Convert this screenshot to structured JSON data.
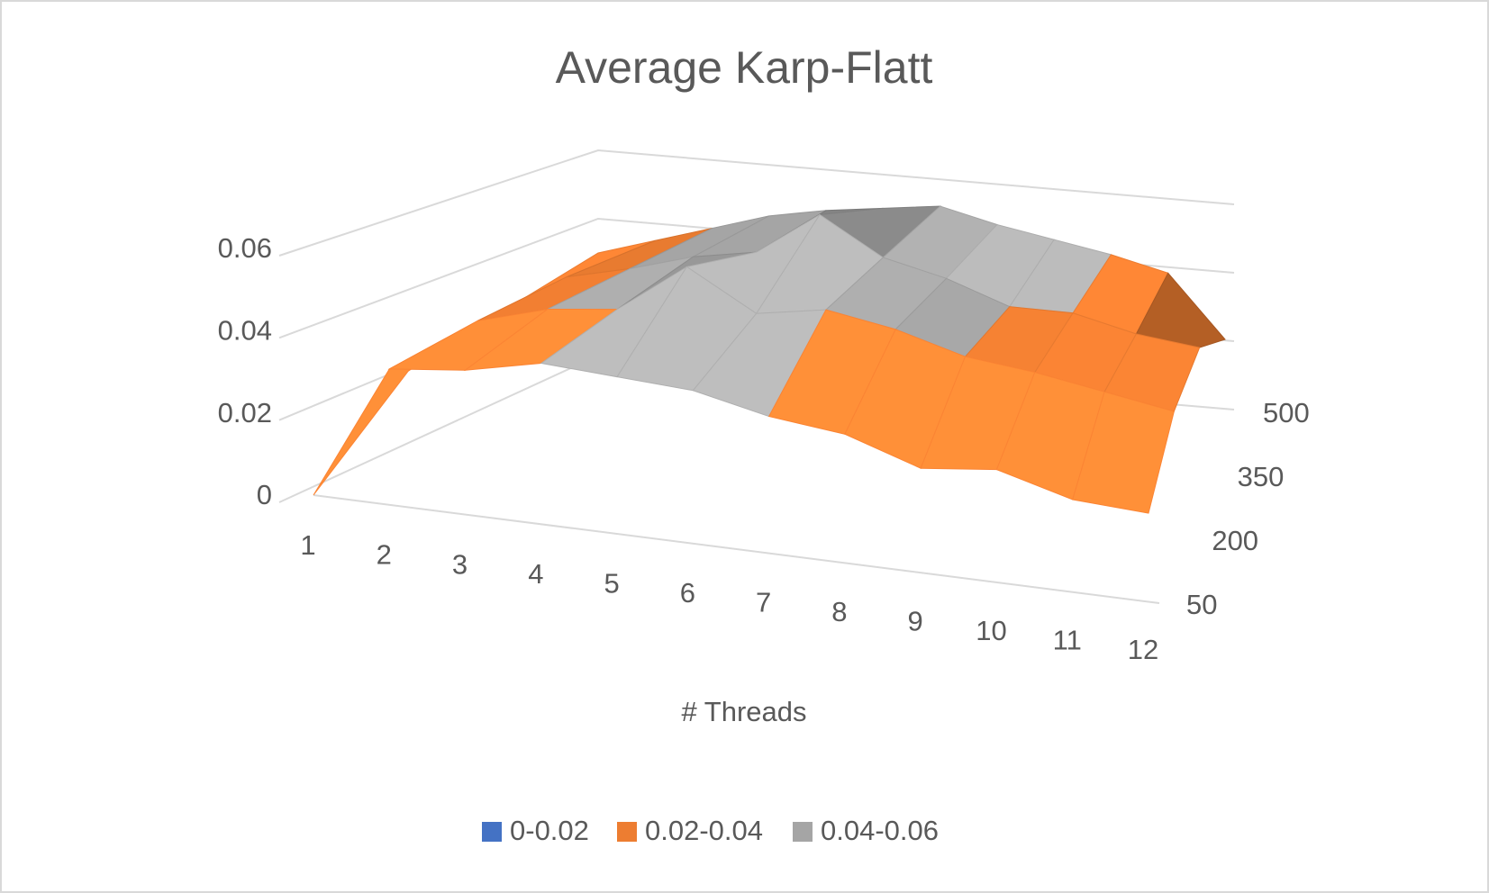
{
  "chart_data": {
    "type": "surface",
    "title": "Average Karp-Flatt",
    "x_label": "# Threads",
    "categories": [
      "1",
      "2",
      "3",
      "4",
      "5",
      "6",
      "7",
      "8",
      "9",
      "10",
      "11",
      "12"
    ],
    "depth_categories": [
      "50",
      "200",
      "350",
      "500"
    ],
    "z": [
      [
        0,
        0.033,
        0.035,
        0.039,
        0.038,
        0.037,
        0.033,
        0.031,
        0.025,
        0.027,
        0.022,
        0.021
      ],
      [
        0.02,
        0.035,
        0.04,
        0.042,
        0.055,
        0.045,
        0.048,
        0.045,
        0.04,
        0.038,
        0.035,
        0.032
      ],
      [
        0.025,
        0.036,
        0.04,
        0.045,
        0.048,
        0.06,
        0.05,
        0.046,
        0.04,
        0.04,
        0.036,
        0.034
      ],
      [
        0.03,
        0.035,
        0.04,
        0.045,
        0.048,
        0.05,
        0.052,
        0.048,
        0.045,
        0.042,
        0.038,
        0.02
      ]
    ],
    "zlim": [
      0,
      0.06
    ],
    "zticks": [
      0,
      0.02,
      0.04,
      0.06
    ],
    "grid": true,
    "bands": [
      {
        "name": "0-0.02",
        "color": "#4472c4",
        "range": [
          0,
          0.02
        ]
      },
      {
        "name": "0.02-0.04",
        "color": "#ed7d31",
        "range": [
          0.02,
          0.04
        ]
      },
      {
        "name": "0.04-0.06",
        "color": "#a5a5a5",
        "range": [
          0.04,
          0.06
        ]
      }
    ]
  }
}
